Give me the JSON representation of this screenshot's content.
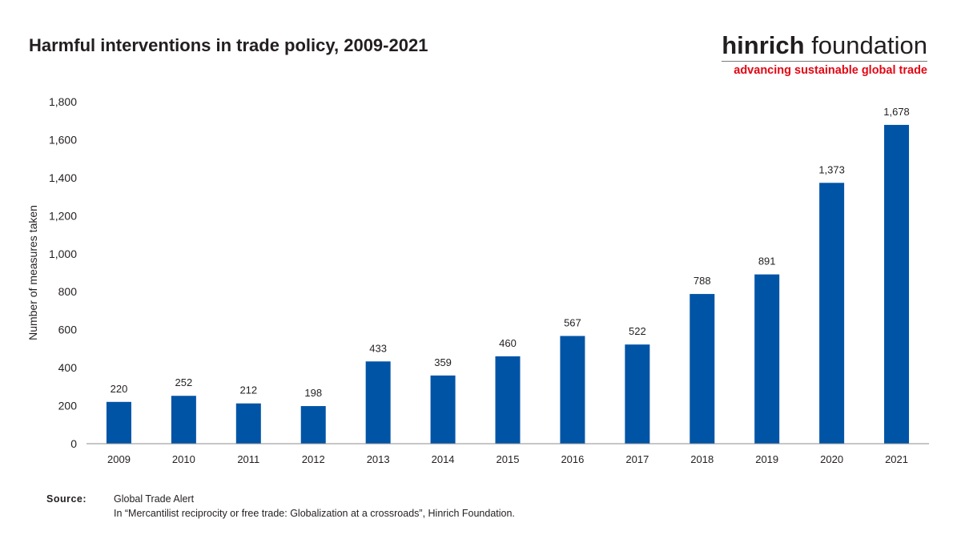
{
  "header": {
    "title": "Harmful interventions in trade policy, 2009-2021"
  },
  "brand": {
    "name_bold": "hinrich",
    "name_rest": " foundation",
    "tagline": "advancing sustainable global trade",
    "tagline_color": "#e30613"
  },
  "chart_data": {
    "type": "bar",
    "title": "Harmful interventions in trade policy, 2009-2021",
    "xlabel": "",
    "ylabel": "Number of measures taken",
    "categories": [
      "2009",
      "2010",
      "2011",
      "2012",
      "2013",
      "2014",
      "2015",
      "2016",
      "2017",
      "2018",
      "2019",
      "2020",
      "2021"
    ],
    "values": [
      220,
      252,
      212,
      198,
      433,
      359,
      460,
      567,
      522,
      788,
      891,
      1373,
      1678
    ],
    "value_labels": [
      "220",
      "252",
      "212",
      "198",
      "433",
      "359",
      "460",
      "567",
      "522",
      "788",
      "891",
      "1,373",
      "1,678"
    ],
    "ylim": [
      0,
      1800
    ],
    "yticks": [
      0,
      200,
      400,
      600,
      800,
      1000,
      1200,
      1400,
      1600,
      1800
    ],
    "ytick_labels": [
      "0",
      "200",
      "400",
      "600",
      "800",
      "1,000",
      "1,200",
      "1,400",
      "1,600",
      "1,800"
    ],
    "grid": false,
    "bar_color": "#0054a6",
    "data_labels": true
  },
  "footer": {
    "source_label": "Source:",
    "source_lines": [
      "Global Trade Alert",
      "In “Mercantilist reciprocity or free trade: Globalization at a crossroads”, Hinrich Foundation."
    ]
  }
}
